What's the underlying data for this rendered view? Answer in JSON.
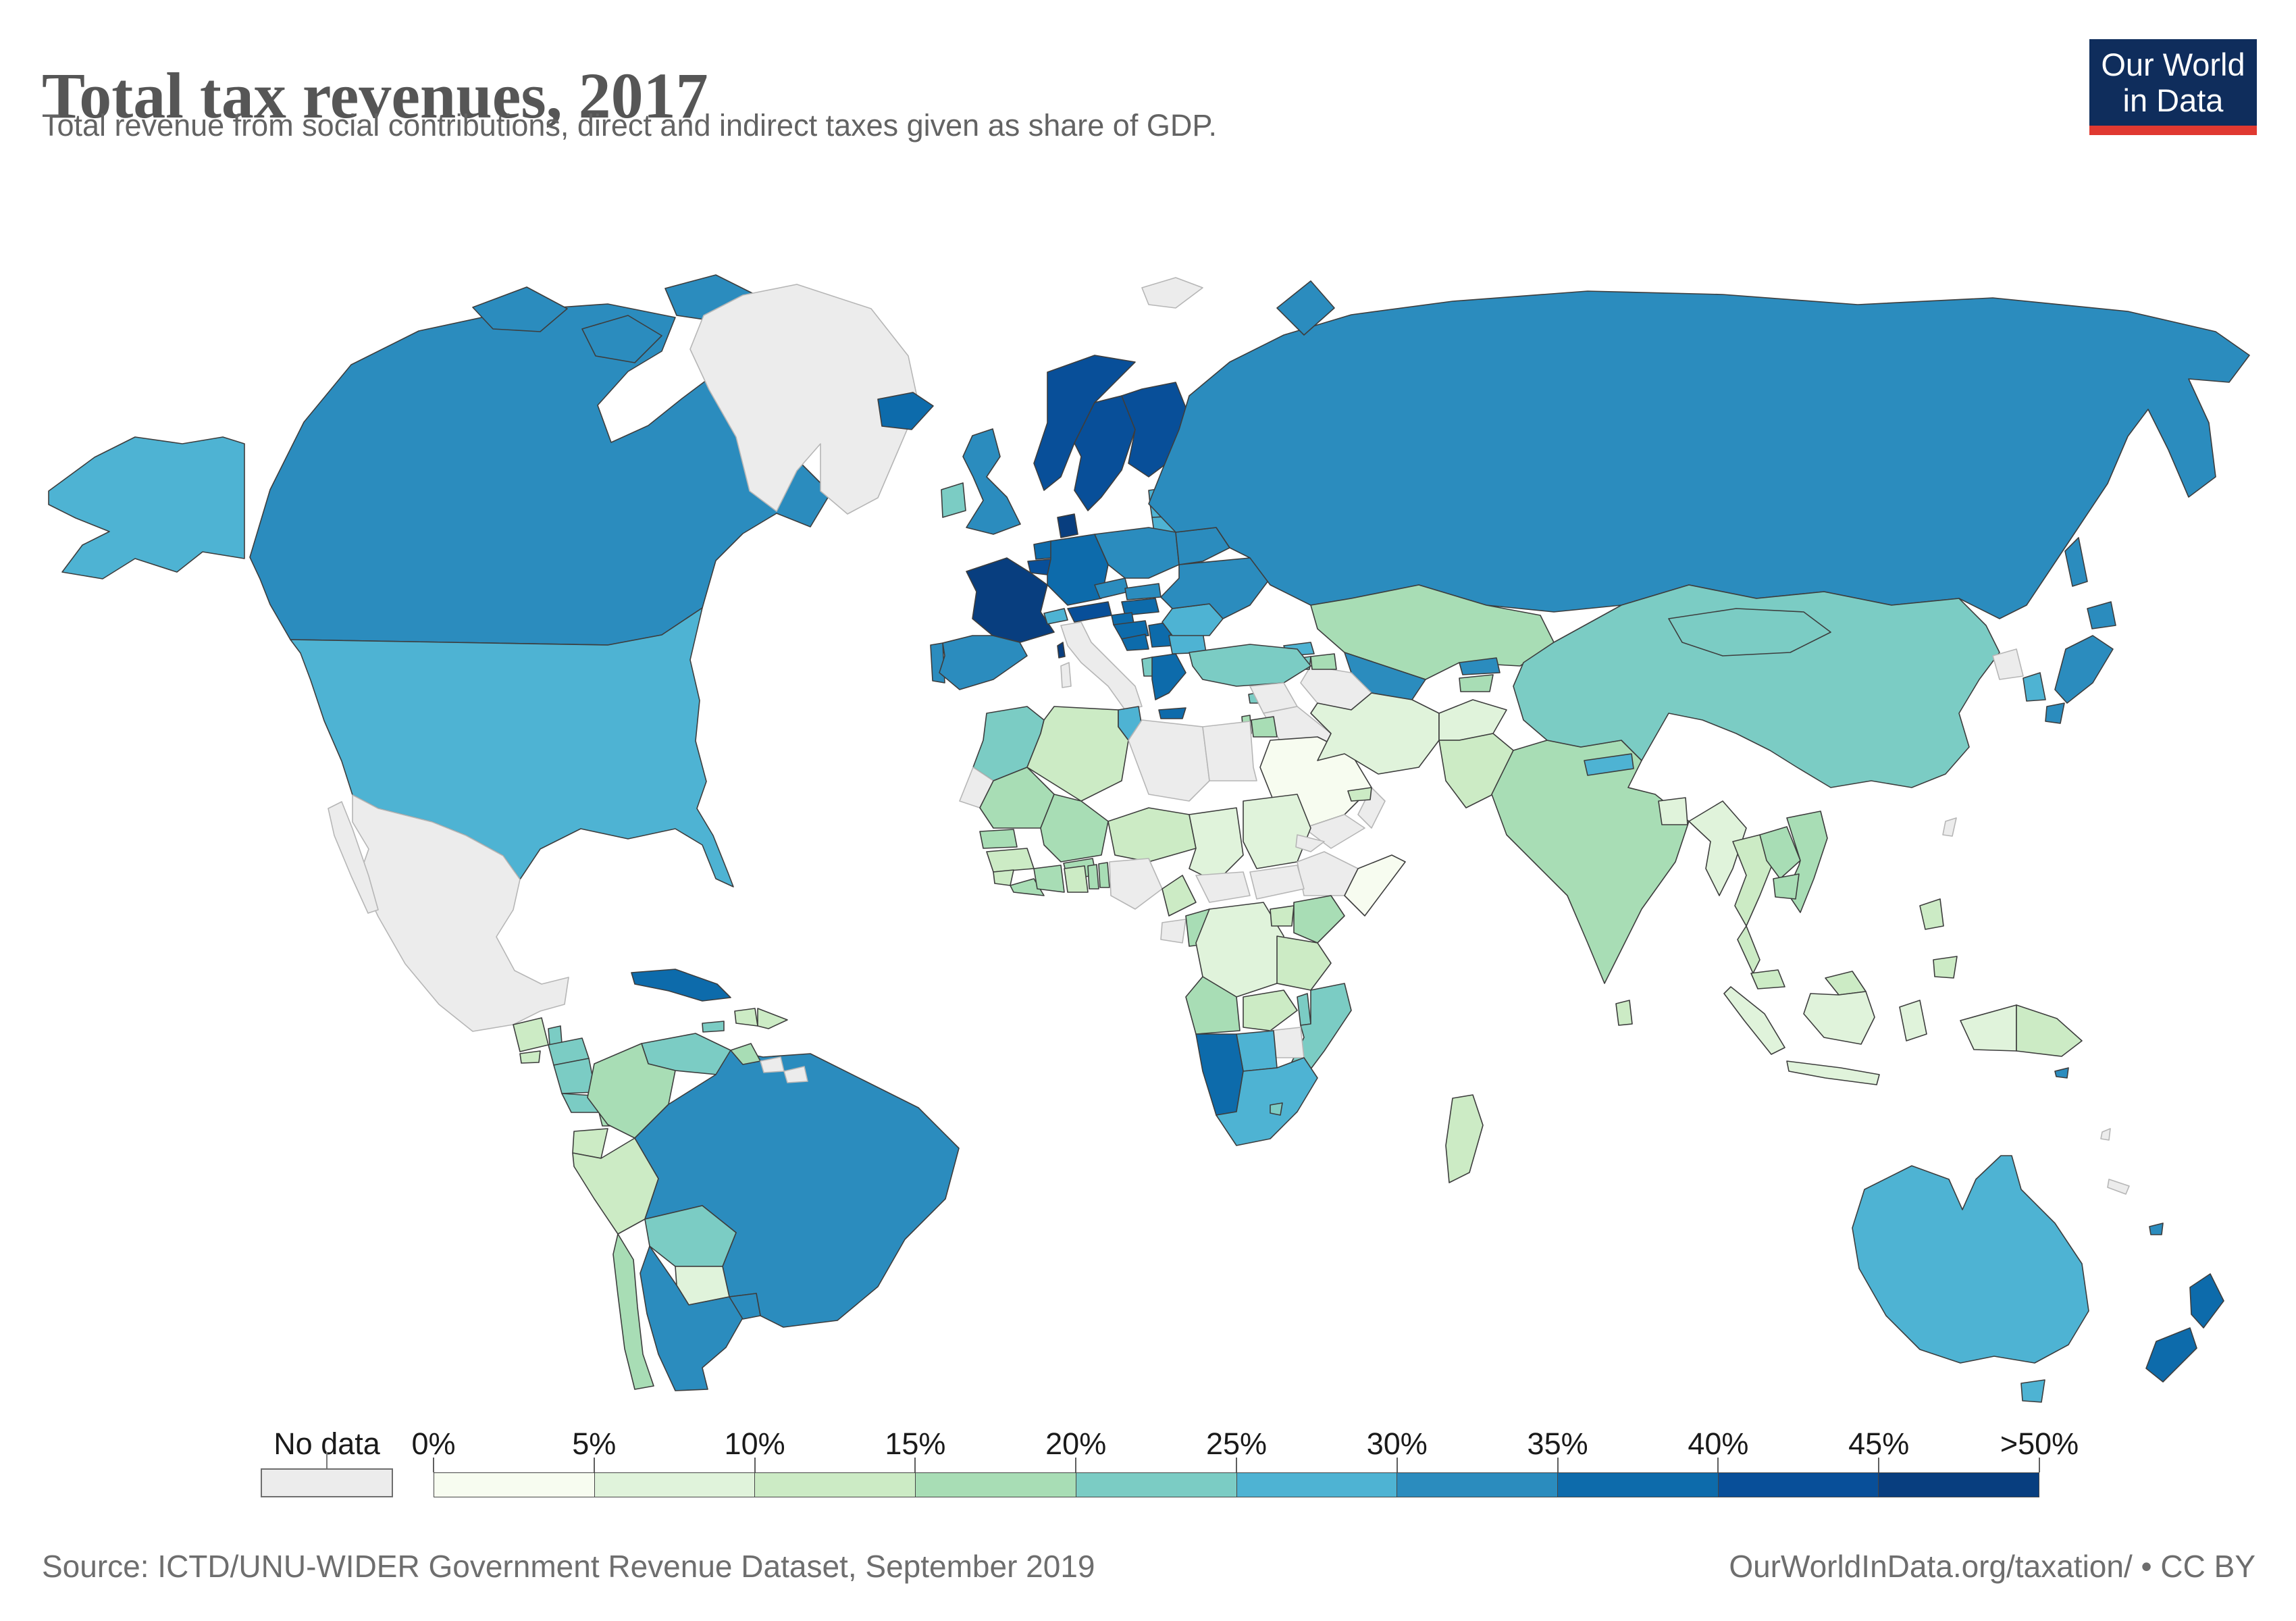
{
  "header": {
    "title": "Total tax revenues, 2017",
    "subtitle": "Total revenue from social contributions, direct and indirect taxes given as share of GDP."
  },
  "logo": {
    "line1": "Our World",
    "line2": "in Data",
    "bg_color": "#0f2d5c",
    "accent_color": "#e03931"
  },
  "legend": {
    "no_data_label": "No data",
    "ticks": [
      "0%",
      "5%",
      "10%",
      "15%",
      "20%",
      "25%",
      "30%",
      "35%",
      "40%",
      "45%",
      ">50%"
    ]
  },
  "footer": {
    "source": "Source: ICTD/UNU-WIDER Government Revenue Dataset, September 2019",
    "link": "OurWorldInData.org/taxation/ • CC BY"
  },
  "chart_data": {
    "type": "choropleth",
    "title": "Total tax revenues, 2017",
    "unit": "share of GDP (%)",
    "legend_position": "bottom",
    "no_data_color": "#ececec",
    "bins": [
      {
        "key": "no-data",
        "label": "No data",
        "color": "#ececec"
      },
      {
        "key": "0-5",
        "label": "0%–5%",
        "color": "#f7fcf0"
      },
      {
        "key": "5-10",
        "label": "5%–10%",
        "color": "#e0f3db"
      },
      {
        "key": "10-15",
        "label": "10%–15%",
        "color": "#ccebc5"
      },
      {
        "key": "15-20",
        "label": "15%–20%",
        "color": "#a8ddb5"
      },
      {
        "key": "20-25",
        "label": "20%–25%",
        "color": "#7bccc4"
      },
      {
        "key": "25-30",
        "label": "25%–30%",
        "color": "#4eb3d3"
      },
      {
        "key": "30-35",
        "label": "30%–35%",
        "color": "#2b8cbe"
      },
      {
        "key": "35-40",
        "label": "35%–40%",
        "color": "#0d6bab"
      },
      {
        "key": "40-45",
        "label": "40%–45%",
        "color": "#084f99"
      },
      {
        "key": "45-50+",
        "label": "45%–>50%",
        "color": "#083e7f"
      }
    ],
    "countries": {
      "greenland": "no-data",
      "canada": "30-35",
      "usa": "25-30",
      "mexico": "no-data",
      "guatemala": "10-15",
      "belize": "20-25",
      "el-salvador": "10-15",
      "honduras": "20-25",
      "nicaragua": "20-25",
      "costa-rica": "20-25",
      "panama": "15-20",
      "cuba": "35-40",
      "jamaica": "20-25",
      "haiti": "10-15",
      "dominican-republic": "10-15",
      "venezuela": "20-25",
      "colombia": "15-20",
      "ecuador": "10-15",
      "peru": "10-15",
      "bolivia": "20-25",
      "paraguay": "5-10",
      "chile": "15-20",
      "argentina": "30-35",
      "uruguay": "30-35",
      "brazil": "30-35",
      "guyana": "15-20",
      "suriname": "no-data",
      "french-guiana": "no-data",
      "iceland": "35-40",
      "ireland": "20-25",
      "uk": "30-35",
      "portugal": "30-35",
      "spain": "30-35",
      "france": "45-50+",
      "belgium": "40-45",
      "netherlands": "35-40",
      "germany": "35-40",
      "denmark": "45-50+",
      "norway": "40-45",
      "sweden": "40-45",
      "finland": "40-45",
      "estonia": "25-30",
      "latvia": "25-30",
      "lithuania": "25-30",
      "poland": "30-35",
      "czechia": "30-35",
      "slovakia": "30-35",
      "austria": "40-45",
      "switzerland": "25-30",
      "hungary": "35-40",
      "slovenia": "35-40",
      "croatia": "35-40",
      "bosnia": "35-40",
      "serbia": "35-40",
      "albania": "20-25",
      "greece": "35-40",
      "bulgaria": "25-30",
      "romania": "25-30",
      "ukraine": "30-35",
      "belarus": "30-35",
      "russia": "30-35",
      "svalbard": "no-data",
      "kazakhstan": "15-20",
      "uzbekistan": "30-35",
      "turkmenistan": "no-data",
      "kyrgyzstan": "30-35",
      "tajikistan": "15-20",
      "georgia": "25-30",
      "armenia": "20-25",
      "azerbaijan": "15-20",
      "turkey": "20-25",
      "cyprus": "20-25",
      "syria": "no-data",
      "iraq": "no-data",
      "israel": "15-20",
      "jordan": "15-20",
      "saudi-arabia": "0-5",
      "yemen": "no-data",
      "oman": "no-data",
      "uae": "10-15",
      "iran": "5-10",
      "afghanistan": "5-10",
      "pakistan": "10-15",
      "india": "15-20",
      "nepal": "25-30",
      "bangladesh": "5-10",
      "sri-lanka": "10-15",
      "china": "20-25",
      "mongolia": "20-25",
      "north-korea": "no-data",
      "south-korea": "25-30",
      "japan": "30-35",
      "taiwan": "no-data",
      "myanmar": "5-10",
      "thailand": "10-15",
      "laos": "15-20",
      "vietnam": "15-20",
      "cambodia": "15-20",
      "malaysia": "10-15",
      "indonesia": "5-10",
      "philippines": "10-15",
      "papua-new-guinea": "10-15",
      "morocco": "20-25",
      "western-sahara": "no-data",
      "algeria": "10-15",
      "tunisia": "25-30",
      "libya": "no-data",
      "egypt": "no-data",
      "mauritania": "15-20",
      "senegal": "15-20",
      "mali": "15-20",
      "burkina-faso": "15-20",
      "niger": "10-15",
      "chad": "5-10",
      "sudan": "5-10",
      "eritrea": "no-data",
      "ethiopia": "no-data",
      "somalia": "0-5",
      "guinea": "10-15",
      "sierra-leone": "10-15",
      "liberia": "15-20",
      "ivory-coast": "15-20",
      "ghana": "10-15",
      "togo": "15-20",
      "benin": "15-20",
      "nigeria": "no-data",
      "cameroon": "10-15",
      "central-african-republic": "no-data",
      "south-sudan": "no-data",
      "gabon": "no-data",
      "congo": "15-20",
      "dr-congo": "5-10",
      "uganda": "10-15",
      "kenya": "15-20",
      "tanzania": "10-15",
      "angola": "15-20",
      "zambia": "10-15",
      "malawi": "20-25",
      "mozambique": "20-25",
      "zimbabwe": "no-data",
      "botswana": "25-30",
      "namibia": "35-40",
      "south-africa": "25-30",
      "lesotho": "20-25",
      "madagascar": "10-15",
      "australia": "25-30",
      "new-zealand": "35-40",
      "fiji": "30-35",
      "solomon-islands": "30-35",
      "vanuatu": "no-data",
      "new-caledonia": "no-data"
    }
  }
}
